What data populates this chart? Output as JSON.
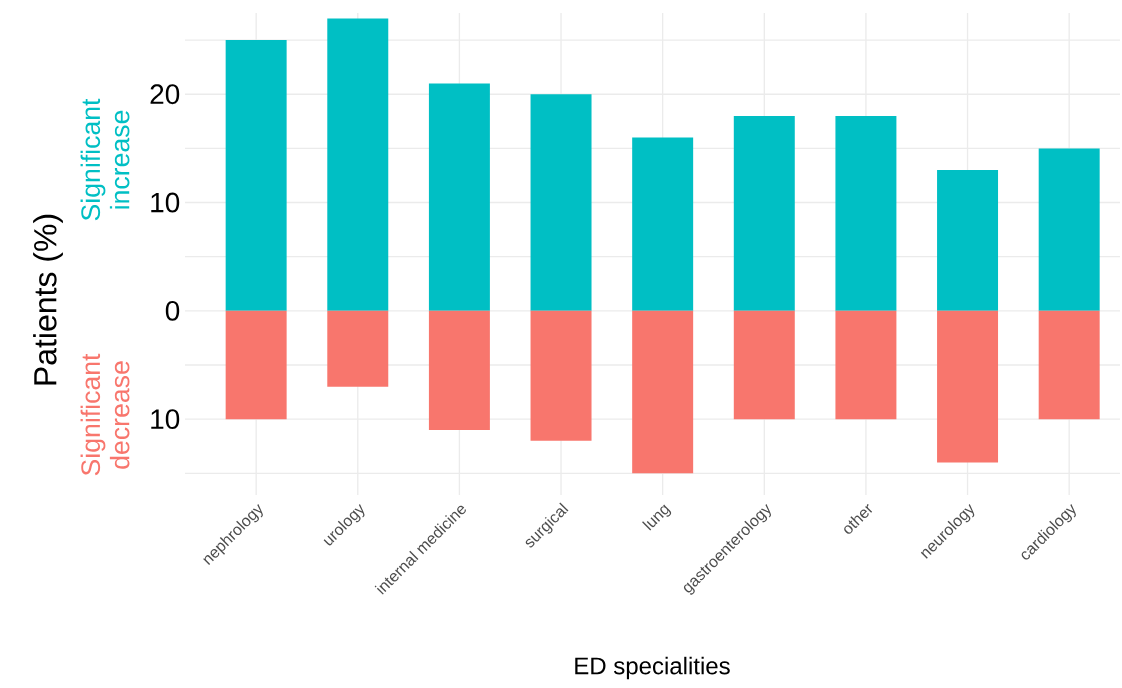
{
  "chart_data": {
    "type": "bar",
    "xlabel": "ED specialities",
    "ylabel": "Patients (%)",
    "categories": [
      "nephrology",
      "urology",
      "internal medicine",
      "surgical",
      "lung",
      "gastroenterology",
      "other",
      "neurology",
      "cardiology"
    ],
    "series": [
      {
        "name": "Significant increase",
        "color": "#00bfc4",
        "values": [
          25,
          27,
          21,
          20,
          16,
          18,
          18,
          13,
          15
        ]
      },
      {
        "name": "Significant decrease",
        "color": "#f8766d",
        "values": [
          -10,
          -7,
          -11,
          -12,
          -15,
          -10,
          -10,
          -14,
          -10
        ]
      }
    ],
    "ylim": [
      -17,
      27.5
    ],
    "yticks": [
      {
        "value": -15,
        "label": null
      },
      {
        "value": -10,
        "label": "10"
      },
      {
        "value": -5,
        "label": null
      },
      0,
      {
        "value": 5,
        "label": null
      },
      10,
      {
        "value": 15,
        "label": null
      },
      20,
      {
        "value": 25,
        "label": null
      }
    ],
    "grid": true,
    "legend": false,
    "stacked": true
  }
}
